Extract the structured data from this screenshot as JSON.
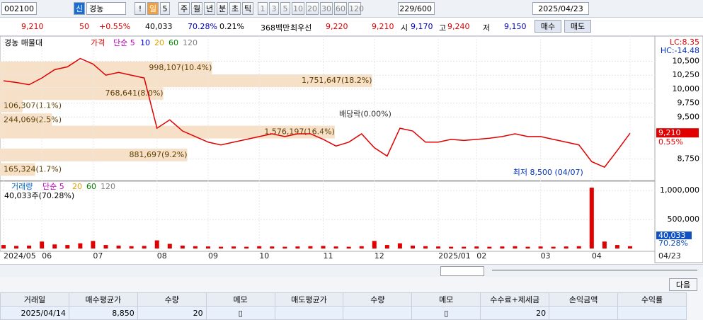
{
  "toolbar": {
    "code": "002100",
    "tag": "신",
    "name": "경농",
    "mark": "!",
    "period": "일",
    "period_n": "5",
    "units": [
      "주",
      "월",
      "년",
      "분",
      "초",
      "틱"
    ],
    "minutes": [
      "1",
      "3",
      "5",
      "10",
      "20",
      "30",
      "60",
      "120"
    ],
    "count": "229/600",
    "date": "2025/04/23"
  },
  "quote": [
    {
      "text": "9,210",
      "color": "#e00000"
    },
    {
      "text": "50",
      "color": "#e00000"
    },
    {
      "text": "+0.55%",
      "color": "#e00000"
    },
    {
      "text": "40,033",
      "color": "#000000"
    },
    {
      "text": "70.28%",
      "color": "#0000c0"
    },
    {
      "text": "0.21%",
      "color": "#000000"
    },
    {
      "text": "368백만",
      "color": "#000000"
    },
    {
      "text": "최우선",
      "color": "#000000"
    },
    {
      "text": "9,220",
      "color": "#e00000"
    },
    {
      "text": "9,210",
      "color": "#e00000"
    },
    {
      "text": "시",
      "color": "#000000"
    },
    {
      "text": "9,170",
      "color": "#0000c0"
    },
    {
      "text": "고",
      "color": "#000000"
    },
    {
      "text": "9,240",
      "color": "#e00000"
    },
    {
      "text": "저",
      "color": "#000000"
    },
    {
      "text": "9,150",
      "color": "#0000c0"
    }
  ],
  "buttons": [
    "매수",
    "매도"
  ],
  "chart_data": {
    "type": "line",
    "title": "경농 매물대",
    "categories": [
      "2024/05",
      null,
      null,
      "06",
      null,
      null,
      null,
      "07",
      null,
      null,
      null,
      null,
      "08",
      null,
      null,
      null,
      "09",
      null,
      null,
      null,
      "10",
      null,
      null,
      null,
      null,
      "11",
      null,
      null,
      null,
      "12",
      null,
      null,
      null,
      null,
      "2025/01",
      null,
      null,
      "02",
      null,
      null,
      null,
      null,
      "03",
      null,
      null,
      null,
      "04",
      null,
      null,
      "04/23"
    ],
    "series": [
      {
        "name": "가격",
        "color": "#e00000",
        "values": [
          10150,
          10120,
          10080,
          10200,
          10350,
          10400,
          10550,
          10450,
          10250,
          10300,
          10250,
          10200,
          9300,
          9450,
          9250,
          9150,
          9050,
          9000,
          9050,
          9100,
          9150,
          9200,
          9150,
          9200,
          9200,
          9100,
          8980,
          9050,
          9200,
          8950,
          8800,
          9300,
          9250,
          9050,
          9050,
          9100,
          9080,
          9100,
          9120,
          9150,
          9200,
          9150,
          9150,
          9100,
          9050,
          9000,
          8700,
          8600,
          8900,
          9210
        ]
      },
      {
        "name": "거래량",
        "color": "#e00000",
        "axis": "y2",
        "values": [
          60000,
          45000,
          50000,
          120000,
          70000,
          60000,
          90000,
          130000,
          60000,
          50000,
          40000,
          45000,
          140000,
          80000,
          50000,
          40000,
          35000,
          30000,
          35000,
          30000,
          40000,
          35000,
          30000,
          35000,
          40000,
          45000,
          35000,
          30000,
          40000,
          130000,
          60000,
          90000,
          50000,
          40000,
          35000,
          30000,
          30000,
          35000,
          30000,
          35000,
          40000,
          30000,
          35000,
          30000,
          35000,
          40000,
          1050000,
          120000,
          60000,
          40033
        ]
      }
    ],
    "ma_legend": [
      {
        "label": "단순 5",
        "color": "#c000c0"
      },
      {
        "label": "10",
        "color": "#0000ff"
      },
      {
        "label": "20",
        "color": "#e0a000"
      },
      {
        "label": "60",
        "color": "#008000"
      },
      {
        "label": "120",
        "color": "#808080"
      }
    ],
    "volume_ma_legend": [
      {
        "label": "단순 5",
        "color": "#c000c0"
      },
      {
        "label": "20",
        "color": "#e0a000"
      },
      {
        "label": "60",
        "color": "#008000"
      },
      {
        "label": "120",
        "color": "#808080"
      }
    ],
    "volume_note": "40,033주(70.28%)",
    "ylim": [
      8400,
      10900
    ],
    "yticks": [
      {
        "value": 8750,
        "label": "8,750"
      },
      {
        "value": 9500,
        "label": "9,500"
      },
      {
        "value": 9750,
        "label": "9,750"
      },
      {
        "value": 10000,
        "label": "10,000"
      },
      {
        "value": 10250,
        "label": "10,250"
      },
      {
        "value": 10500,
        "label": "10,500"
      }
    ],
    "y2lim": [
      0,
      1100000
    ],
    "y2ticks": [
      {
        "value": 500000,
        "label": "500,000"
      },
      {
        "value": 1000000,
        "label": "1,000,000"
      }
    ],
    "profile_color": "#f6e0c8",
    "profile": [
      {
        "value": 998107,
        "label": "998,107(10.4%)",
        "price": 10380
      },
      {
        "value": 1751647,
        "label": "1,751,647(18.2%)",
        "price": 10150
      },
      {
        "value": 768641,
        "label": "768,641(8.0%)",
        "price": 9920
      },
      {
        "value": 106307,
        "label": "106,307(1.1%)",
        "price": 9700
      },
      {
        "value": 244069,
        "label": "244,069(2.5%)",
        "price": 9450
      },
      {
        "value": 1576197,
        "label": "1,576,197(16.4%)",
        "price": 9230
      },
      {
        "value": 881697,
        "label": "881,697(9.2%)",
        "price": 8820
      },
      {
        "value": 165324,
        "label": "165,324(1.7%)",
        "price": 8560
      }
    ],
    "annotations": [
      {
        "text": "최저 8,500 (04/07)",
        "index": 46,
        "price": 8500
      },
      {
        "text": "배당락(0.00%)",
        "index": 31,
        "price": 9550
      }
    ],
    "side_labels": [
      "LC:8.35",
      "HC:-14.48"
    ],
    "price_tag": {
      "value": 9210,
      "label": "9,210"
    },
    "rate_tag": "0.55%",
    "volume_tags": [
      "40,033",
      "70.28%"
    ]
  },
  "lower": {
    "next": "다음",
    "table": {
      "headers": [
        "거래일",
        "매수평균가",
        "수량",
        "메모",
        "매도평균가",
        "수량",
        "메모",
        "수수료+제세금",
        "손익금액",
        "수익률"
      ],
      "rows": [
        [
          "2025/04/14",
          "8,850",
          "20",
          null,
          null,
          null,
          null,
          "20",
          null,
          null
        ]
      ]
    }
  }
}
